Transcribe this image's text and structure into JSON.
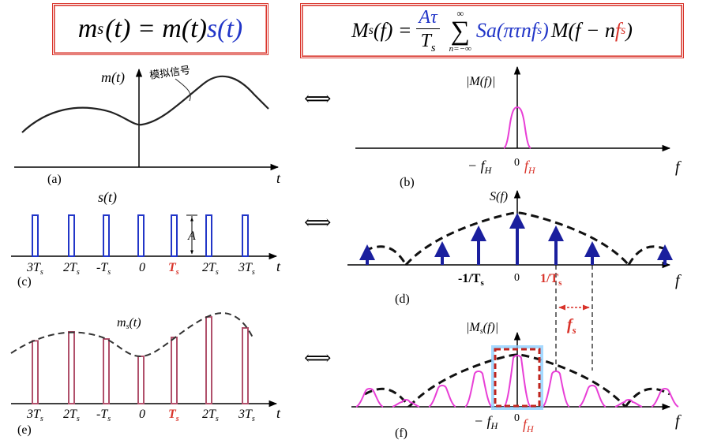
{
  "formulas": {
    "time_domain": {
      "lhs": "m",
      "lhs_sub": "s",
      "arg": "(t) = m(t)",
      "blue_part": "s(t)"
    },
    "freq_domain": {
      "lhs": "M",
      "lhs_sub": "s",
      "lhs_arg": "(f) =",
      "frac_num": "Aτ",
      "frac_den": "T",
      "frac_den_sub": "s",
      "sum_top": "∞",
      "sum_sym": "∑",
      "sum_bottom": "n=−∞",
      "blue_part": "Sa(πτnf",
      "blue_sub": "s",
      "blue_close": ")",
      "rest": "M(f − n",
      "red_part": "f",
      "red_sub": "s",
      "close": ")"
    }
  },
  "equivalence_symbol": "⟺",
  "panels": {
    "a": {
      "ylabel": "m(t)",
      "annotation": "模拟信号",
      "xlabel": "t",
      "caption": "(a)"
    },
    "b": {
      "ylabel": "|M(f)|",
      "xlabel": "f",
      "neg_tick": "− f",
      "neg_tick_sub": "H",
      "zero_tick": "0",
      "pos_tick": "f",
      "pos_tick_sub": "H",
      "caption": "(b)"
    },
    "c": {
      "ylabel": "s(t)",
      "amplitude": "A",
      "xlabel": "t",
      "caption": "(c)",
      "ticks": [
        "3T",
        "2T",
        "-T",
        "0",
        "T",
        "2T",
        "3T"
      ],
      "tick_sub": "s"
    },
    "d": {
      "ylabel": "S(f)",
      "xlabel": "f",
      "neg_tick": "-1/T",
      "neg_tick_sub": "s",
      "zero_tick": "0",
      "pos_tick": "1/T",
      "pos_tick_sub": "s",
      "spacing_label": "f",
      "spacing_sub": "s",
      "caption": "(d)"
    },
    "e": {
      "ylabel": "m",
      "ylabel_sub": "s",
      "ylabel_arg": "(t)",
      "xlabel": "t",
      "caption": "(e)",
      "ticks": [
        "3T",
        "2T",
        "-T",
        "0",
        "T",
        "2T",
        "3T"
      ],
      "tick_sub": "s"
    },
    "f": {
      "ylabel": "|M",
      "ylabel_sub": "s",
      "ylabel_arg": "(f)|",
      "xlabel": "f",
      "neg_tick": "− f",
      "neg_tick_sub": "H",
      "zero_tick": "0",
      "pos_tick": "f",
      "pos_tick_sub": "H",
      "caption": "(f)"
    }
  },
  "colors": {
    "red": "#d9342b",
    "blue": "#2236c8",
    "navy": "#1a1f9e",
    "pink": "#e83fd6",
    "pulse": "#b0506b"
  }
}
